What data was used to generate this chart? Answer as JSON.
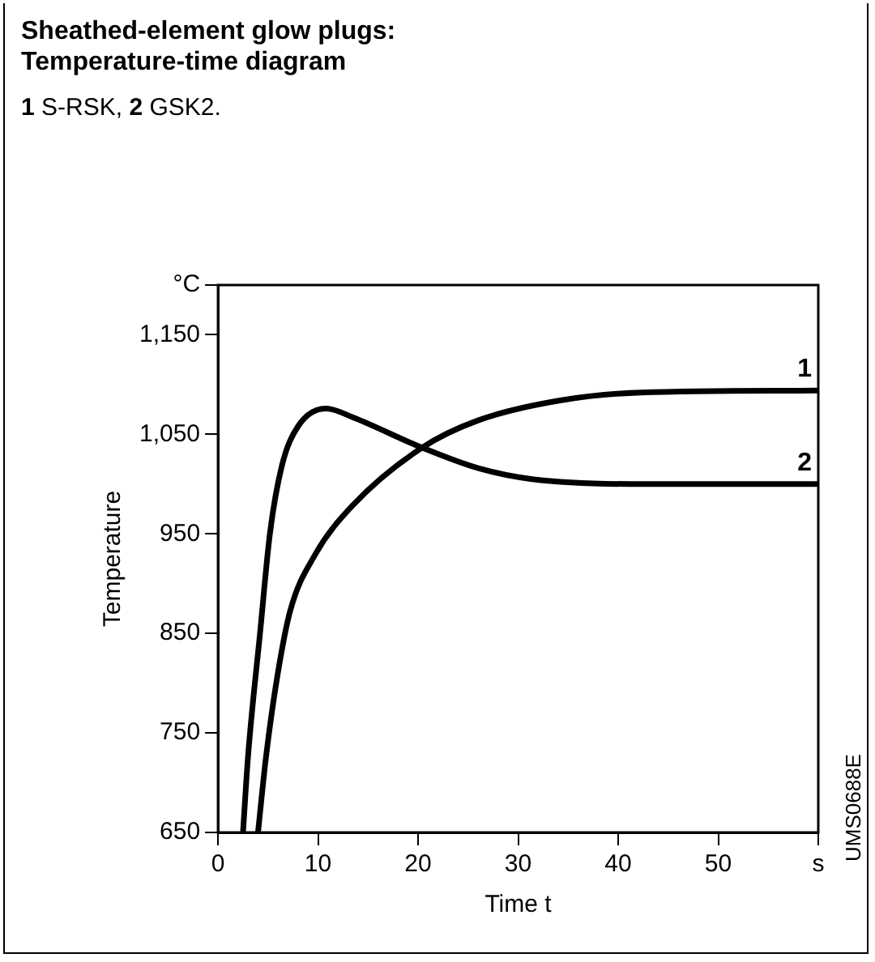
{
  "chart_data": {
    "type": "line",
    "title": "Sheathed-element glow plugs:\nTemperature-time diagram",
    "subtitle": "1 S-RSK, 2 GSK2.",
    "xlabel": "Time t",
    "ylabel": "Temperature",
    "xlim": [
      0,
      60
    ],
    "xticks": [
      0,
      10,
      20,
      30,
      40,
      50,
      {
        "value": 60,
        "label": "s"
      }
    ],
    "ylim": [
      650,
      1200
    ],
    "yticks": [
      650,
      750,
      850,
      950,
      {
        "value": 1050,
        "label": "1,050"
      },
      {
        "value": 1150,
        "label": "1,150"
      },
      {
        "value": 1200,
        "label": "°C"
      }
    ],
    "grid": false,
    "legend": false,
    "marker": "none",
    "line_style": "solid",
    "annotations": [
      "UMS0688E"
    ],
    "series": [
      {
        "name": "1",
        "color": "#000000",
        "x": [
          4.0,
          4.8,
          5.9,
          7.2,
          9.7,
          13.5,
          20.3,
          26.0,
          34.2,
          42.3,
          60
        ],
        "values": [
          650,
          726,
          805,
          872,
          929,
          979,
          1036,
          1064,
          1084,
          1092,
          1094
        ]
      },
      {
        "name": "2",
        "color": "#000000",
        "x": [
          2.5,
          3.0,
          4.2,
          5.2,
          6.4,
          8.0,
          10.8,
          13.5,
          20.3,
          26.0,
          31.4,
          42.3,
          60
        ],
        "values": [
          650,
          726,
          850,
          951,
          1019,
          1058,
          1076,
          1067,
          1037,
          1016,
          1005,
          1000,
          1000
        ]
      }
    ]
  }
}
